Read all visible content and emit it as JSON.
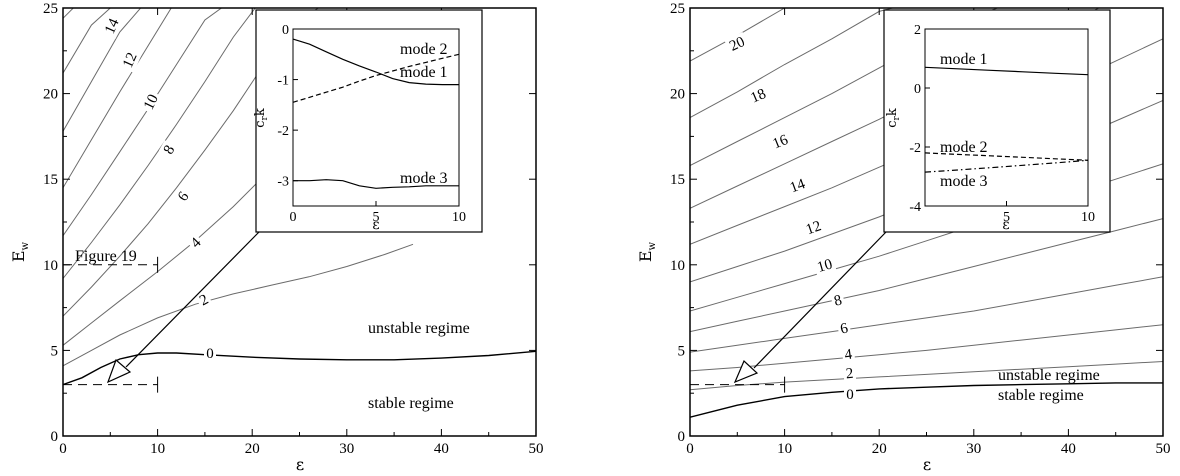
{
  "chart_data": [
    {
      "type": "line",
      "xlabel": "ε",
      "ylabel": "E",
      "ylabel_sub": "w",
      "xlim": [
        0,
        50
      ],
      "ylim": [
        0,
        25
      ],
      "xticks": [
        "0",
        "10",
        "20",
        "30",
        "40",
        "50"
      ],
      "yticks": [
        "0",
        "5",
        "10",
        "15",
        "20",
        "25"
      ],
      "grid": false,
      "annotations": {
        "figure_label": "Figure 19",
        "unstable": "unstable regime",
        "stable": "stable regime"
      },
      "series": [
        {
          "label": "0",
          "x": [
            0,
            2,
            4,
            6,
            8,
            10,
            12,
            15,
            20,
            25,
            30,
            35,
            40,
            45,
            50
          ],
          "y": [
            3.0,
            3.4,
            4.0,
            4.5,
            4.75,
            4.85,
            4.85,
            4.75,
            4.6,
            4.5,
            4.45,
            4.45,
            4.55,
            4.7,
            4.95
          ]
        },
        {
          "label": "2",
          "x": [
            0,
            3,
            6,
            10,
            14,
            18,
            22,
            26,
            30,
            34,
            37
          ],
          "y": [
            4.1,
            5.0,
            5.9,
            6.9,
            7.7,
            8.3,
            8.8,
            9.3,
            9.9,
            10.6,
            11.2
          ]
        },
        {
          "label": "4",
          "x": [
            0,
            3,
            6,
            10,
            14,
            18,
            22,
            26,
            29
          ],
          "y": [
            5.3,
            6.6,
            7.9,
            9.6,
            11.4,
            13.4,
            15.6,
            18.0,
            19.9
          ]
        },
        {
          "label": "6",
          "x": [
            0,
            3,
            6,
            9,
            12,
            15,
            18,
            21,
            24,
            27
          ],
          "y": [
            7.0,
            8.7,
            10.5,
            12.4,
            14.5,
            16.7,
            19.0,
            21.5,
            24.0,
            25.0
          ]
        },
        {
          "label": "8",
          "x": [
            0,
            3,
            6,
            9,
            12,
            15,
            18,
            21,
            23
          ],
          "y": [
            9.2,
            11.3,
            13.5,
            15.8,
            18.2,
            20.7,
            23.3,
            25.5,
            25.5
          ]
        },
        {
          "label": "10",
          "x": [
            0,
            3,
            6,
            9,
            12,
            15,
            18,
            20
          ],
          "y": [
            11.7,
            14.1,
            16.6,
            19.1,
            21.7,
            24.3,
            25.5,
            25.5
          ]
        },
        {
          "label": "12",
          "x": [
            0,
            3,
            6,
            9,
            12,
            15,
            17
          ],
          "y": [
            14.5,
            17.3,
            20.1,
            22.8,
            25.5,
            25.5,
            25.5
          ]
        },
        {
          "label": "14",
          "x": [
            0,
            3,
            6,
            9,
            12,
            14
          ],
          "y": [
            17.8,
            20.7,
            23.6,
            25.5,
            25.5,
            25.5
          ]
        },
        {
          "label": "",
          "x": [
            0,
            3,
            6,
            8,
            10,
            12
          ],
          "y": [
            21.2,
            24.0,
            25.5,
            25.5,
            25.5,
            25.5
          ]
        },
        {
          "label": "",
          "x": [
            0,
            2,
            4,
            6,
            8
          ],
          "y": [
            24.4,
            25.5,
            25.5,
            25.5,
            25.5
          ]
        },
        {
          "label": "",
          "x": [
            36,
            40,
            44,
            50
          ],
          "y": [
            25.0,
            25.5,
            25.5,
            25.5
          ]
        }
      ],
      "dashed": [
        {
          "x": [
            0,
            10
          ],
          "y": [
            3.0,
            3.0
          ]
        },
        {
          "x": [
            0,
            10
          ],
          "y": [
            10.0,
            10.0
          ]
        }
      ],
      "inset": {
        "xlabel": "ε",
        "ylabel": "c",
        "ylabel_sub": "r",
        "ylabel_suffix": "k",
        "xlim": [
          0,
          10
        ],
        "ylim": [
          -3.5,
          0
        ],
        "xticks": [
          "0",
          "5",
          "10"
        ],
        "yticks": [
          "0",
          "-1",
          "-2",
          "-3"
        ],
        "series": [
          {
            "name": "mode 1",
            "style": "solid",
            "x": [
              0,
              1,
              2,
              3,
              4,
              5,
              6,
              7,
              8,
              9,
              10
            ],
            "y": [
              -0.2,
              -0.3,
              -0.45,
              -0.6,
              -0.73,
              -0.85,
              -0.98,
              -1.06,
              -1.09,
              -1.1,
              -1.1
            ]
          },
          {
            "name": "mode 2",
            "style": "dashed",
            "x": [
              0,
              1,
              2,
              3,
              4,
              5,
              6,
              7,
              8,
              9,
              10
            ],
            "y": [
              -1.45,
              -1.35,
              -1.25,
              -1.15,
              -1.03,
              -0.92,
              -0.83,
              -0.74,
              -0.66,
              -0.58,
              -0.5
            ]
          },
          {
            "name": "mode 3",
            "style": "solid",
            "x": [
              0,
              1,
              2,
              3,
              4,
              5,
              6,
              7,
              8,
              9,
              10
            ],
            "y": [
              -3.0,
              -3.0,
              -2.98,
              -3.0,
              -3.1,
              -3.15,
              -3.13,
              -3.12,
              -3.1,
              -3.1,
              -3.1
            ]
          }
        ]
      }
    },
    {
      "type": "line",
      "xlabel": "ε",
      "ylabel": "E",
      "ylabel_sub": "w",
      "xlim": [
        0,
        50
      ],
      "ylim": [
        0,
        25
      ],
      "xticks": [
        "0",
        "10",
        "20",
        "30",
        "40",
        "50"
      ],
      "yticks": [
        "0",
        "5",
        "10",
        "15",
        "20",
        "25"
      ],
      "grid": false,
      "annotations": {
        "unstable": "unstable regime",
        "stable": "stable regime"
      },
      "series": [
        {
          "label": "0",
          "x": [
            0,
            5,
            10,
            15,
            20,
            25,
            30,
            35,
            40,
            45,
            50
          ],
          "y": [
            1.1,
            1.8,
            2.3,
            2.55,
            2.75,
            2.85,
            2.95,
            3.0,
            3.05,
            3.1,
            3.1
          ]
        },
        {
          "label": "2",
          "x": [
            0,
            5,
            10,
            15,
            20,
            25,
            30,
            35,
            40,
            45,
            50
          ],
          "y": [
            2.7,
            2.95,
            3.15,
            3.3,
            3.45,
            3.6,
            3.75,
            3.9,
            4.05,
            4.2,
            4.35
          ]
        },
        {
          "label": "4",
          "x": [
            0,
            5,
            10,
            15,
            20,
            25,
            30,
            35,
            40,
            45,
            50
          ],
          "y": [
            3.8,
            4.0,
            4.25,
            4.5,
            4.75,
            5.0,
            5.3,
            5.6,
            5.9,
            6.2,
            6.5
          ]
        },
        {
          "label": "6",
          "x": [
            0,
            5,
            10,
            15,
            20,
            25,
            30,
            35,
            40,
            45,
            50
          ],
          "y": [
            4.9,
            5.3,
            5.7,
            6.1,
            6.5,
            6.9,
            7.3,
            7.8,
            8.3,
            8.8,
            9.3
          ]
        },
        {
          "label": "8",
          "x": [
            0,
            5,
            10,
            15,
            20,
            25,
            30,
            35,
            40,
            45,
            50
          ],
          "y": [
            6.1,
            6.7,
            7.3,
            7.9,
            8.5,
            9.2,
            9.9,
            10.6,
            11.3,
            12.0,
            12.7
          ]
        },
        {
          "label": "10",
          "x": [
            0,
            5,
            10,
            15,
            20,
            25,
            30,
            35,
            40,
            45,
            50
          ],
          "y": [
            7.3,
            8.1,
            8.9,
            9.7,
            10.5,
            11.4,
            12.3,
            13.2,
            14.1,
            15.0,
            15.9
          ]
        },
        {
          "label": "12",
          "x": [
            0,
            5,
            10,
            15,
            20,
            25,
            30,
            35,
            40,
            45,
            50
          ],
          "y": [
            9.0,
            9.9,
            10.8,
            11.8,
            12.8,
            13.9,
            15.0,
            16.1,
            17.2,
            18.4,
            19.6
          ]
        },
        {
          "label": "14",
          "x": [
            0,
            5,
            10,
            15,
            20,
            25,
            30,
            35,
            40,
            45,
            50
          ],
          "y": [
            11.2,
            12.3,
            13.4,
            14.5,
            15.7,
            16.9,
            18.1,
            19.3,
            20.6,
            21.9,
            23.2
          ]
        },
        {
          "label": "16",
          "x": [
            0,
            5,
            10,
            15,
            20,
            25,
            30,
            35,
            40,
            45,
            48
          ],
          "y": [
            13.3,
            14.6,
            15.9,
            17.2,
            18.5,
            19.9,
            21.3,
            22.7,
            24.1,
            25.5,
            25.5
          ]
        },
        {
          "label": "18",
          "x": [
            0,
            5,
            10,
            15,
            20,
            25,
            30,
            35,
            38
          ],
          "y": [
            15.8,
            17.2,
            18.6,
            20.0,
            21.5,
            23.0,
            24.5,
            25.5,
            25.5
          ]
        },
        {
          "label": "",
          "x": [
            0,
            5,
            10,
            15,
            20,
            25,
            30,
            33
          ],
          "y": [
            18.6,
            20.1,
            21.7,
            23.2,
            24.8,
            25.5,
            25.5,
            25.5
          ]
        },
        {
          "label": "20",
          "x": [
            0,
            5,
            10,
            15,
            20,
            22
          ],
          "y": [
            21.9,
            23.4,
            25.0,
            25.5,
            25.5,
            25.5
          ]
        }
      ],
      "dashed": [
        {
          "x": [
            0,
            10
          ],
          "y": [
            3.0,
            3.0
          ]
        }
      ],
      "inset": {
        "xlabel": "ε",
        "ylabel": "c",
        "ylabel_sub": "r",
        "ylabel_suffix": "k",
        "xlim": [
          0,
          10
        ],
        "ylim": [
          -4,
          2
        ],
        "xticks": [
          "5",
          "10"
        ],
        "yticks": [
          "2",
          "0",
          "-2",
          "-4"
        ],
        "series": [
          {
            "name": "mode 1",
            "style": "solid",
            "x": [
              0,
              2,
              4,
              6,
              8,
              10
            ],
            "y": [
              0.7,
              0.65,
              0.6,
              0.55,
              0.5,
              0.45
            ]
          },
          {
            "name": "mode 2",
            "style": "dashed",
            "x": [
              0,
              2,
              4,
              6,
              8,
              10
            ],
            "y": [
              -2.2,
              -2.25,
              -2.3,
              -2.35,
              -2.4,
              -2.45
            ]
          },
          {
            "name": "mode 3",
            "style": "dashdot",
            "x": [
              0,
              2,
              4,
              6,
              8,
              10
            ],
            "y": [
              -2.85,
              -2.78,
              -2.7,
              -2.62,
              -2.54,
              -2.45
            ]
          }
        ]
      }
    }
  ]
}
